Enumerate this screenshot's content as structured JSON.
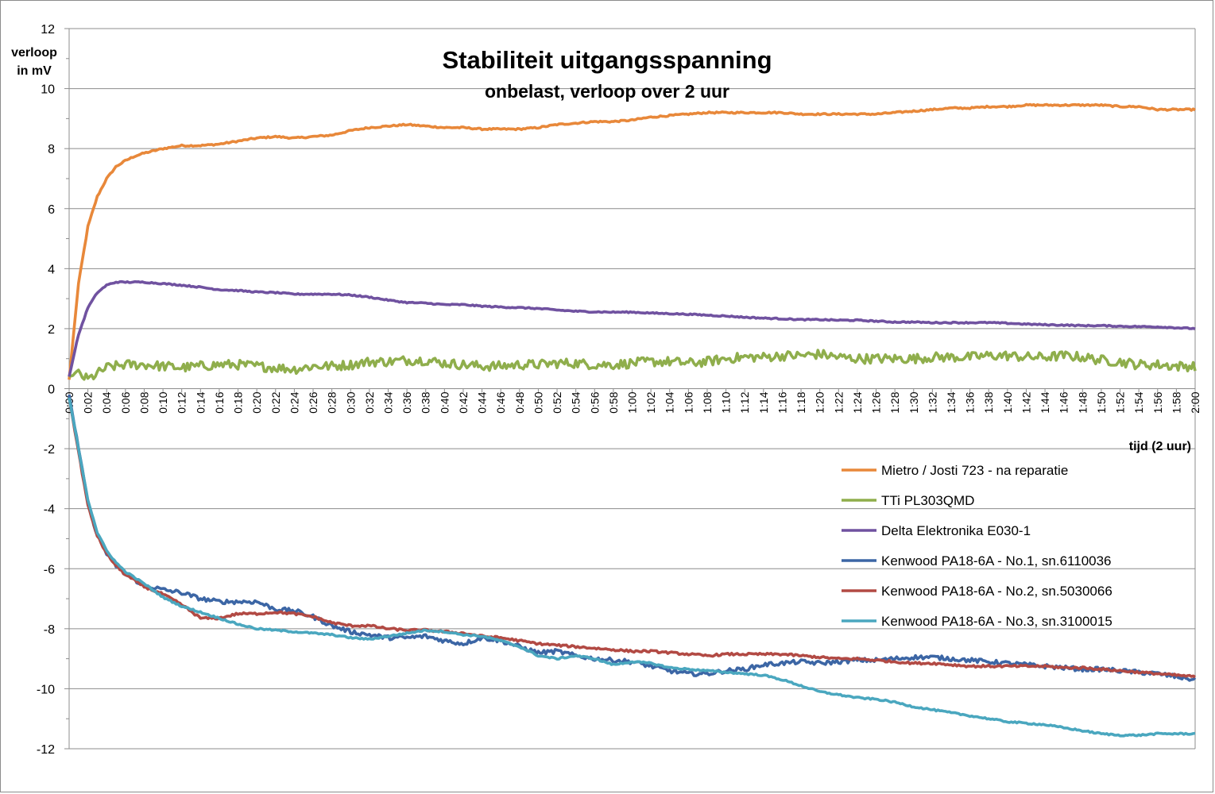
{
  "chart_data": {
    "type": "line",
    "title": "Stabiliteit uitgangsspanning",
    "subtitle": "onbelast, verloop over 2 uur",
    "ylabel_line1": "verloop",
    "ylabel_line2": "in mV",
    "xlabel": "tijd  (2 uur)",
    "ylim": [
      -12,
      12
    ],
    "ytick_step": 2,
    "ytick_labels": [
      "-12",
      "-10",
      "-8",
      "-6",
      "-4",
      "-2",
      "0",
      "2",
      "4",
      "6",
      "8",
      "10",
      "12"
    ],
    "xlim_minutes": [
      0,
      120
    ],
    "xtick_labels": [
      "0:00",
      "0:02",
      "0:04",
      "0:06",
      "0:08",
      "0:10",
      "0:12",
      "0:14",
      "0:16",
      "0:18",
      "0:20",
      "0:22",
      "0:24",
      "0:26",
      "0:28",
      "0:30",
      "0:32",
      "0:34",
      "0:36",
      "0:38",
      "0:40",
      "0:42",
      "0:44",
      "0:46",
      "0:48",
      "0:50",
      "0:52",
      "0:54",
      "0:56",
      "0:58",
      "1:00",
      "1:02",
      "1:04",
      "1:06",
      "1:08",
      "1:10",
      "1:12",
      "1:14",
      "1:16",
      "1:18",
      "1:20",
      "1:22",
      "1:24",
      "1:26",
      "1:28",
      "1:30",
      "1:32",
      "1:34",
      "1:36",
      "1:38",
      "1:40",
      "1:42",
      "1:44",
      "1:46",
      "1:48",
      "1:50",
      "1:52",
      "1:54",
      "1:56",
      "1:58",
      "2:00"
    ],
    "grid": "horizontal",
    "legend_position": "bottom-right",
    "series": [
      {
        "name": "Mietro / Josti 723 - na reparatie",
        "color": "#E8883A",
        "x": [
          0,
          1,
          2,
          3,
          4,
          5,
          6,
          7,
          8,
          10,
          12,
          14,
          16,
          18,
          20,
          22,
          24,
          26,
          28,
          30,
          32,
          34,
          36,
          38,
          40,
          42,
          44,
          46,
          48,
          50,
          52,
          54,
          56,
          58,
          60,
          62,
          64,
          66,
          68,
          70,
          72,
          74,
          76,
          78,
          80,
          82,
          84,
          86,
          88,
          90,
          92,
          94,
          96,
          98,
          100,
          102,
          104,
          106,
          108,
          110,
          112,
          114,
          116,
          118,
          120
        ],
        "y": [
          0.3,
          3.5,
          5.4,
          6.4,
          7.0,
          7.4,
          7.6,
          7.75,
          7.85,
          8.0,
          8.1,
          8.1,
          8.15,
          8.25,
          8.35,
          8.4,
          8.35,
          8.4,
          8.45,
          8.6,
          8.7,
          8.75,
          8.8,
          8.75,
          8.7,
          8.7,
          8.65,
          8.65,
          8.65,
          8.7,
          8.8,
          8.85,
          8.9,
          8.9,
          8.95,
          9.05,
          9.1,
          9.15,
          9.2,
          9.2,
          9.2,
          9.2,
          9.2,
          9.15,
          9.15,
          9.15,
          9.15,
          9.15,
          9.2,
          9.25,
          9.3,
          9.35,
          9.35,
          9.4,
          9.4,
          9.45,
          9.45,
          9.45,
          9.45,
          9.45,
          9.4,
          9.4,
          9.3,
          9.3,
          9.3
        ]
      },
      {
        "name": "TTi PL303QMD",
        "color": "#8FAE4C",
        "x": [
          0,
          1,
          2,
          3,
          4,
          6,
          8,
          10,
          12,
          14,
          16,
          18,
          20,
          22,
          24,
          26,
          28,
          30,
          32,
          34,
          36,
          38,
          40,
          42,
          44,
          46,
          48,
          50,
          52,
          54,
          56,
          58,
          60,
          62,
          64,
          66,
          68,
          70,
          72,
          74,
          76,
          78,
          80,
          82,
          84,
          86,
          88,
          90,
          92,
          94,
          96,
          98,
          100,
          102,
          104,
          106,
          108,
          110,
          112,
          114,
          116,
          118,
          120
        ],
        "y": [
          0.4,
          0.5,
          0.3,
          0.5,
          0.7,
          0.8,
          0.8,
          0.75,
          0.7,
          0.75,
          0.8,
          0.8,
          0.75,
          0.7,
          0.65,
          0.75,
          0.75,
          0.8,
          0.9,
          0.9,
          0.95,
          0.95,
          0.85,
          0.8,
          0.75,
          0.75,
          0.8,
          0.8,
          0.85,
          0.85,
          0.8,
          0.8,
          0.85,
          0.9,
          0.9,
          0.85,
          0.9,
          1.0,
          1.05,
          1.05,
          1.1,
          1.1,
          1.15,
          1.05,
          1.0,
          1.0,
          1.0,
          1.0,
          1.05,
          1.05,
          1.05,
          1.1,
          1.1,
          1.05,
          1.05,
          1.1,
          1.05,
          0.95,
          0.9,
          0.8,
          0.8,
          0.75,
          0.75
        ]
      },
      {
        "name": "Delta Elektronika E030-1",
        "color": "#7052A0",
        "x": [
          0,
          1,
          2,
          3,
          4,
          5,
          6,
          7,
          8,
          10,
          12,
          14,
          16,
          18,
          20,
          22,
          24,
          26,
          28,
          30,
          32,
          34,
          36,
          38,
          40,
          42,
          44,
          46,
          48,
          50,
          52,
          54,
          56,
          58,
          60,
          62,
          64,
          66,
          68,
          70,
          72,
          74,
          76,
          78,
          80,
          82,
          84,
          86,
          88,
          90,
          92,
          94,
          96,
          98,
          100,
          102,
          104,
          106,
          108,
          110,
          112,
          114,
          116,
          118,
          120
        ],
        "y": [
          0.4,
          1.8,
          2.7,
          3.2,
          3.45,
          3.55,
          3.55,
          3.55,
          3.55,
          3.5,
          3.45,
          3.38,
          3.3,
          3.27,
          3.22,
          3.2,
          3.15,
          3.15,
          3.15,
          3.12,
          3.05,
          2.95,
          2.87,
          2.85,
          2.8,
          2.8,
          2.75,
          2.72,
          2.7,
          2.67,
          2.62,
          2.58,
          2.56,
          2.55,
          2.55,
          2.52,
          2.5,
          2.48,
          2.45,
          2.42,
          2.38,
          2.35,
          2.33,
          2.3,
          2.3,
          2.28,
          2.28,
          2.25,
          2.22,
          2.22,
          2.2,
          2.2,
          2.2,
          2.2,
          2.18,
          2.15,
          2.13,
          2.12,
          2.1,
          2.1,
          2.08,
          2.07,
          2.06,
          2.03,
          2.0
        ]
      },
      {
        "name": "Kenwood PA18-6A  - No.1, sn.6110036",
        "color": "#3C66A5",
        "x": [
          0,
          1,
          2,
          3,
          4,
          5,
          6,
          8,
          10,
          12,
          14,
          16,
          18,
          20,
          22,
          24,
          26,
          28,
          30,
          32,
          34,
          36,
          38,
          40,
          42,
          44,
          46,
          48,
          50,
          52,
          54,
          56,
          58,
          60,
          62,
          64,
          66,
          68,
          70,
          72,
          74,
          76,
          78,
          80,
          82,
          84,
          86,
          88,
          90,
          92,
          94,
          96,
          98,
          100,
          102,
          104,
          106,
          108,
          110,
          112,
          114,
          116,
          118,
          120
        ],
        "y": [
          -0.2,
          -2.0,
          -3.8,
          -4.9,
          -5.5,
          -5.9,
          -6.2,
          -6.55,
          -6.7,
          -6.8,
          -7.0,
          -7.1,
          -7.1,
          -7.1,
          -7.35,
          -7.4,
          -7.6,
          -7.9,
          -8.1,
          -8.2,
          -8.3,
          -8.3,
          -8.25,
          -8.4,
          -8.5,
          -8.3,
          -8.4,
          -8.6,
          -8.8,
          -8.75,
          -8.9,
          -9.0,
          -9.05,
          -9.1,
          -9.25,
          -9.4,
          -9.5,
          -9.5,
          -9.4,
          -9.35,
          -9.2,
          -9.15,
          -9.1,
          -9.15,
          -9.1,
          -9.05,
          -9.05,
          -9.0,
          -8.95,
          -8.95,
          -9.0,
          -9.05,
          -9.1,
          -9.15,
          -9.2,
          -9.25,
          -9.3,
          -9.35,
          -9.35,
          -9.4,
          -9.45,
          -9.5,
          -9.6,
          -9.7
        ]
      },
      {
        "name": "Kenwood PA18-6A  - No.2, sn.5030066",
        "color": "#B24A44",
        "x": [
          0,
          1,
          2,
          3,
          4,
          5,
          6,
          8,
          10,
          12,
          14,
          16,
          18,
          20,
          22,
          24,
          26,
          28,
          30,
          32,
          34,
          36,
          38,
          40,
          42,
          44,
          46,
          48,
          50,
          52,
          54,
          56,
          58,
          60,
          62,
          64,
          66,
          68,
          70,
          72,
          74,
          76,
          78,
          80,
          82,
          84,
          86,
          88,
          90,
          92,
          94,
          96,
          98,
          100,
          102,
          104,
          106,
          108,
          110,
          112,
          114,
          116,
          118,
          120
        ],
        "y": [
          -0.3,
          -2.1,
          -3.9,
          -4.9,
          -5.5,
          -5.9,
          -6.2,
          -6.6,
          -6.85,
          -7.2,
          -7.65,
          -7.65,
          -7.5,
          -7.5,
          -7.45,
          -7.5,
          -7.6,
          -7.8,
          -7.9,
          -7.9,
          -8.0,
          -8.05,
          -8.05,
          -8.1,
          -8.15,
          -8.25,
          -8.3,
          -8.4,
          -8.5,
          -8.55,
          -8.6,
          -8.65,
          -8.7,
          -8.75,
          -8.75,
          -8.8,
          -8.85,
          -8.9,
          -8.85,
          -8.85,
          -8.85,
          -8.85,
          -8.9,
          -8.95,
          -9.0,
          -9.0,
          -9.05,
          -9.1,
          -9.15,
          -9.15,
          -9.2,
          -9.25,
          -9.25,
          -9.25,
          -9.25,
          -9.25,
          -9.3,
          -9.3,
          -9.35,
          -9.4,
          -9.45,
          -9.5,
          -9.55,
          -9.6
        ]
      },
      {
        "name": "Kenwood PA18-6A  - No.3, sn.3100015",
        "color": "#4AA7BF",
        "x": [
          0,
          1,
          2,
          3,
          4,
          5,
          6,
          8,
          10,
          12,
          14,
          16,
          18,
          20,
          22,
          24,
          26,
          28,
          30,
          32,
          34,
          36,
          38,
          40,
          42,
          44,
          46,
          48,
          50,
          52,
          54,
          56,
          58,
          60,
          62,
          64,
          66,
          68,
          70,
          72,
          74,
          76,
          78,
          80,
          82,
          84,
          86,
          88,
          90,
          92,
          94,
          96,
          98,
          100,
          102,
          104,
          106,
          108,
          110,
          112,
          114,
          116,
          118,
          120
        ],
        "y": [
          -0.3,
          -2.0,
          -3.7,
          -4.8,
          -5.4,
          -5.8,
          -6.1,
          -6.5,
          -6.95,
          -7.25,
          -7.45,
          -7.65,
          -7.85,
          -8.0,
          -8.05,
          -8.1,
          -8.15,
          -8.2,
          -8.3,
          -8.35,
          -8.25,
          -8.15,
          -8.05,
          -8.1,
          -8.2,
          -8.25,
          -8.4,
          -8.6,
          -8.9,
          -9.0,
          -8.9,
          -9.0,
          -9.2,
          -9.1,
          -9.15,
          -9.3,
          -9.35,
          -9.4,
          -9.45,
          -9.5,
          -9.55,
          -9.7,
          -9.9,
          -10.1,
          -10.2,
          -10.3,
          -10.35,
          -10.45,
          -10.6,
          -10.7,
          -10.8,
          -10.9,
          -11.0,
          -11.1,
          -11.15,
          -11.2,
          -11.3,
          -11.4,
          -11.5,
          -11.55,
          -11.55,
          -11.5,
          -11.5,
          -11.5
        ]
      }
    ]
  }
}
